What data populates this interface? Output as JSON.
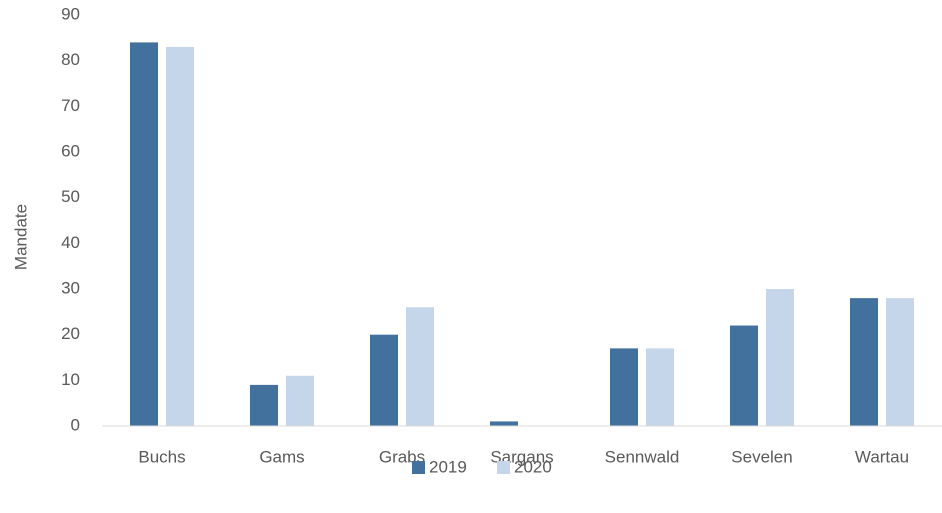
{
  "chart_data": {
    "type": "bar",
    "y_label": "Mandate",
    "categories": [
      "Buchs",
      "Gams",
      "Grabs",
      "Sargans",
      "Sennwald",
      "Sevelen",
      "Wartau"
    ],
    "series": [
      {
        "name": "2019",
        "color": "#41719c",
        "values": [
          84,
          9,
          20,
          1,
          17,
          22,
          28
        ]
      },
      {
        "name": "2020",
        "color": "#c5d5ea",
        "values": [
          83,
          11,
          26,
          0,
          17,
          30,
          28
        ]
      }
    ],
    "ylim": [
      0,
      90
    ],
    "yticks": [
      0,
      10,
      20,
      30,
      40,
      50,
      60,
      70,
      80,
      90
    ],
    "grid": false,
    "legend": "bottom"
  }
}
